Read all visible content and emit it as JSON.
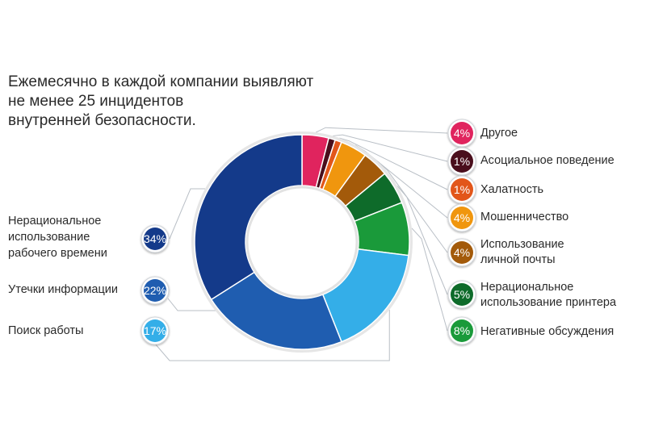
{
  "title_lines": [
    "Ежемесячно в каждой компании выявляют",
    "не менее 25 инцидентов",
    "внутренней безопасности."
  ],
  "chart_data": {
    "type": "pie",
    "title": "Ежемесячно в каждой компании выявляют не менее 25 инцидентов внутренней безопасности.",
    "unit": "%",
    "slices": [
      {
        "key": "other",
        "label_lines": [
          "Другое"
        ],
        "value": 4,
        "display": "4%",
        "color": "#e0245e",
        "side": "right"
      },
      {
        "key": "antisocial",
        "label_lines": [
          "Асоциальное поведение"
        ],
        "value": 1,
        "display": "1%",
        "color": "#4a0e1c",
        "side": "right"
      },
      {
        "key": "negligence",
        "label_lines": [
          "Халатность"
        ],
        "value": 1,
        "display": "1%",
        "color": "#e2561a",
        "side": "right"
      },
      {
        "key": "fraud",
        "label_lines": [
          "Мошенничество"
        ],
        "value": 4,
        "display": "4%",
        "color": "#f0960e",
        "side": "right"
      },
      {
        "key": "email",
        "label_lines": [
          "Использование",
          "личной почты"
        ],
        "value": 4,
        "display": "4%",
        "color": "#a35a0a",
        "side": "right"
      },
      {
        "key": "printer",
        "label_lines": [
          "Нерациональное",
          "использование принтера"
        ],
        "value": 5,
        "display": "5%",
        "color": "#0e6b2a",
        "side": "right"
      },
      {
        "key": "negative",
        "label_lines": [
          "Негативные обсуждения"
        ],
        "value": 8,
        "display": "8%",
        "color": "#1a9a3a",
        "side": "right"
      },
      {
        "key": "job",
        "label_lines": [
          "Поиск работы"
        ],
        "value": 17,
        "display": "17%",
        "color": "#34aee8",
        "side": "left"
      },
      {
        "key": "leak",
        "label_lines": [
          "Утечки информации"
        ],
        "value": 22,
        "display": "22%",
        "color": "#1f5db0",
        "side": "left"
      },
      {
        "key": "worktime",
        "label_lines": [
          "Нерациональное",
          "использование",
          "рабочего времени"
        ],
        "value": 34,
        "display": "34%",
        "color": "#143a8a",
        "side": "left"
      }
    ]
  }
}
